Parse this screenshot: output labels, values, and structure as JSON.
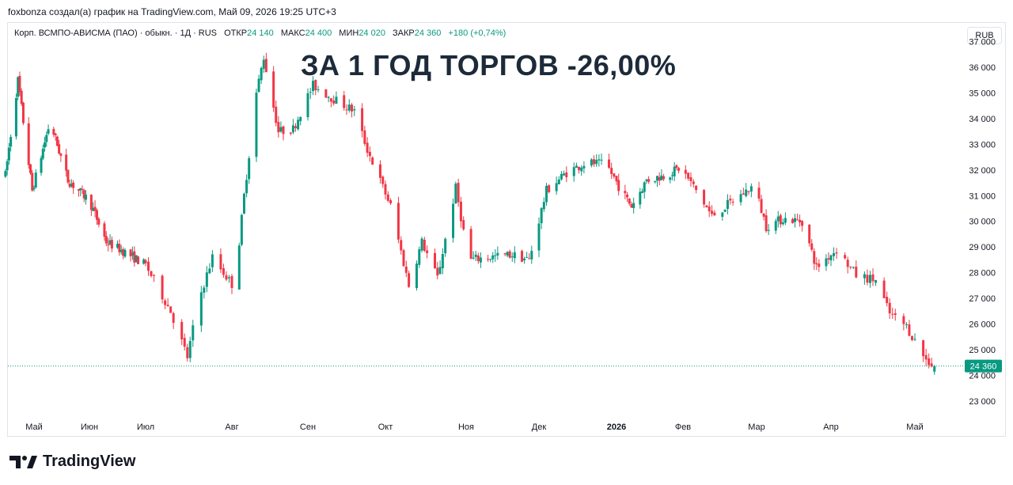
{
  "header": {
    "attribution": "foxbonza создал(а) график на TradingView.com, Май 09, 2026 19:25 UTC+3"
  },
  "legend": {
    "symbol": "Корп. ВСМПО-АВИСМА (ПАО) · обыкн. · 1Д · RUS",
    "open_label": "ОТКР",
    "open_value": "24 140",
    "high_label": "МАКС",
    "high_value": "24 400",
    "low_label": "МИН",
    "low_value": "24 020",
    "close_label": "ЗАКР",
    "close_value": "24 360",
    "change": "+180 (+0,74%)"
  },
  "currency": "RUB",
  "annotation": "ЗА 1 ГОД ТОРГОВ -26,00%",
  "last_price_label": "24 360",
  "colors": {
    "up": "#089981",
    "down": "#f23645",
    "text": "#131722"
  },
  "icons": {
    "logo": "tradingview-logo-icon"
  },
  "logo_text": "TradingView",
  "chart_data": {
    "type": "candlestick",
    "ylim": [
      22500,
      37700
    ],
    "y_ticks": [
      "37 000",
      "36 000",
      "35 000",
      "34 000",
      "33 000",
      "32 000",
      "31 000",
      "30 000",
      "29 000",
      "28 000",
      "27 000",
      "26 000",
      "25 000",
      "24 000",
      "23 000"
    ],
    "x_ticks": [
      {
        "label": "Май",
        "date": "2025-05-01",
        "bold": false
      },
      {
        "label": "Июн",
        "date": "2025-06-01",
        "bold": false
      },
      {
        "label": "Июл",
        "date": "2025-07-01",
        "bold": false
      },
      {
        "label": "Авг",
        "date": "2025-08-01",
        "bold": false
      },
      {
        "label": "Сен",
        "date": "2025-09-01",
        "bold": false
      },
      {
        "label": "Окт",
        "date": "2025-10-01",
        "bold": false
      },
      {
        "label": "Ноя",
        "date": "2025-11-01",
        "bold": false
      },
      {
        "label": "Дек",
        "date": "2025-12-01",
        "bold": false
      },
      {
        "label": "2026",
        "date": "2026-01-01",
        "bold": true
      },
      {
        "label": "Фев",
        "date": "2026-02-01",
        "bold": false
      },
      {
        "label": "Мар",
        "date": "2026-03-01",
        "bold": false
      },
      {
        "label": "Апр",
        "date": "2026-04-01",
        "bold": false
      },
      {
        "label": "Май",
        "date": "2026-05-01",
        "bold": false
      }
    ],
    "last_close": 24360,
    "trend": [
      [
        "2025-04-15",
        31800
      ],
      [
        "2025-04-22",
        35500
      ],
      [
        "2025-04-30",
        31200
      ],
      [
        "2025-05-10",
        33900
      ],
      [
        "2025-05-20",
        31600
      ],
      [
        "2025-06-01",
        30800
      ],
      [
        "2025-06-10",
        29200
      ],
      [
        "2025-06-20",
        28800
      ],
      [
        "2025-07-01",
        28300
      ],
      [
        "2025-07-10",
        26500
      ],
      [
        "2025-07-16",
        24700
      ],
      [
        "2025-07-20",
        26900
      ],
      [
        "2025-07-25",
        28600
      ],
      [
        "2025-08-02",
        27400
      ],
      [
        "2025-08-06",
        31000
      ],
      [
        "2025-08-11",
        35000
      ],
      [
        "2025-08-14",
        36400
      ],
      [
        "2025-08-20",
        33500
      ],
      [
        "2025-08-26",
        33600
      ],
      [
        "2025-09-03",
        35300
      ],
      [
        "2025-09-12",
        34700
      ],
      [
        "2025-09-19",
        34300
      ],
      [
        "2025-09-24",
        32800
      ],
      [
        "2025-10-03",
        30600
      ],
      [
        "2025-10-10",
        27500
      ],
      [
        "2025-10-15",
        29200
      ],
      [
        "2025-10-21",
        27800
      ],
      [
        "2025-10-28",
        31300
      ],
      [
        "2025-11-02",
        28500
      ],
      [
        "2025-11-10",
        28600
      ],
      [
        "2025-11-20",
        28700
      ],
      [
        "2025-11-27",
        28500
      ],
      [
        "2025-12-04",
        31200
      ],
      [
        "2025-12-12",
        31900
      ],
      [
        "2025-12-20",
        32300
      ],
      [
        "2025-12-28",
        32200
      ],
      [
        "2026-01-03",
        31200
      ],
      [
        "2026-01-08",
        30600
      ],
      [
        "2026-01-15",
        31600
      ],
      [
        "2026-01-24",
        31800
      ],
      [
        "2026-01-31",
        32100
      ],
      [
        "2026-02-06",
        31200
      ],
      [
        "2026-02-12",
        30200
      ],
      [
        "2026-02-20",
        30800
      ],
      [
        "2026-02-28",
        31400
      ],
      [
        "2026-03-05",
        29800
      ],
      [
        "2026-03-12",
        30100
      ],
      [
        "2026-03-20",
        30000
      ],
      [
        "2026-03-26",
        28200
      ],
      [
        "2026-04-03",
        28900
      ],
      [
        "2026-04-10",
        27900
      ],
      [
        "2026-04-17",
        27700
      ],
      [
        "2026-04-22",
        26400
      ],
      [
        "2026-04-28",
        25900
      ],
      [
        "2026-05-05",
        24600
      ],
      [
        "2026-05-08",
        24360
      ]
    ]
  }
}
